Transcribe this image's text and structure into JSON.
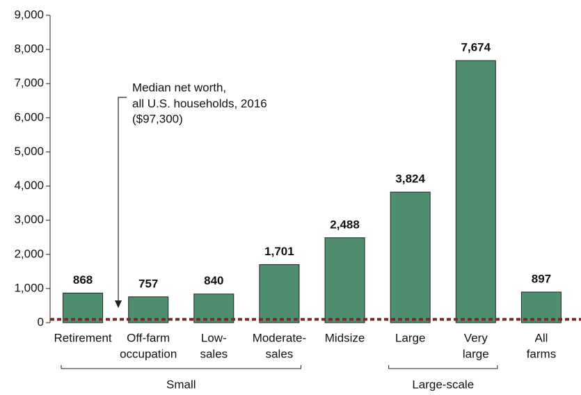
{
  "chart_data": {
    "type": "bar",
    "categories": [
      [
        "Retirement"
      ],
      [
        "Off-farm",
        "occupation"
      ],
      [
        "Low-",
        "sales"
      ],
      [
        "Moderate-",
        "sales"
      ],
      [
        "Midsize"
      ],
      [
        "Large"
      ],
      [
        "Very",
        "large"
      ],
      [
        "All",
        "farms"
      ]
    ],
    "values": [
      868,
      757,
      840,
      1701,
      2488,
      3824,
      7674,
      897
    ],
    "value_labels": [
      "868",
      "757",
      "840",
      "1,701",
      "2,488",
      "3,824",
      "7,674",
      "897"
    ],
    "color": "#4f8f6f",
    "ylim": [
      0,
      9000
    ],
    "yticks": [
      0,
      {
        "value": 1000,
        "label": "1,000"
      },
      {
        "value": 2000,
        "label": "2,000"
      },
      {
        "value": 3000,
        "label": "3,000"
      },
      {
        "value": 4000,
        "label": "4,000"
      },
      {
        "value": 5000,
        "label": "5,000"
      },
      {
        "value": 6000,
        "label": "6,000"
      },
      {
        "value": 7000,
        "label": "7,000"
      },
      {
        "value": 8000,
        "label": "8,000"
      },
      {
        "value": 9000,
        "label": "9,000"
      }
    ],
    "reference_line": {
      "value": 97.3,
      "color": "#7b2a2a",
      "annotation": [
        "Median net worth,",
        "all U.S. households, 2016",
        "($97,300)"
      ]
    },
    "groups": [
      {
        "label": "Small",
        "start": 0,
        "end": 3
      },
      {
        "label": "Large-scale",
        "start": 5,
        "end": 6
      }
    ]
  }
}
